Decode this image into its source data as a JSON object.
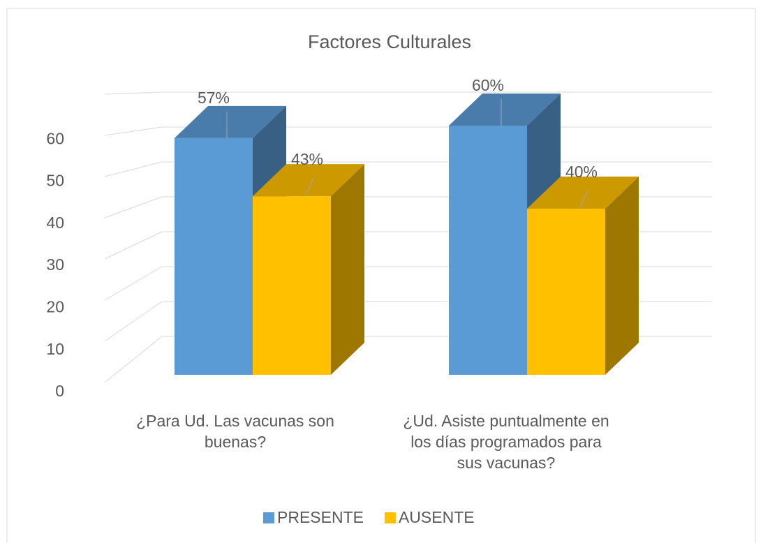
{
  "chart_data": {
    "type": "bar3d",
    "title": "Factores Culturales",
    "categories": [
      "¿Para Ud. Las vacunas son buenas?",
      "¿Ud. Asiste puntualmente en los días programados para sus vacunas?"
    ],
    "series": [
      {
        "name": "PRESENTE",
        "color": "#5b9bd5",
        "values": [
          57,
          60
        ],
        "value_labels": [
          "57%",
          "60%"
        ]
      },
      {
        "name": "AUSENTE",
        "color": "#ffc000",
        "values": [
          43,
          40
        ],
        "value_labels": [
          "43%",
          "40%"
        ]
      }
    ],
    "ylim": [
      0,
      70
    ],
    "yticks": [
      0,
      10,
      20,
      30,
      40,
      50,
      60
    ],
    "grid": true,
    "legend": "bottom"
  }
}
